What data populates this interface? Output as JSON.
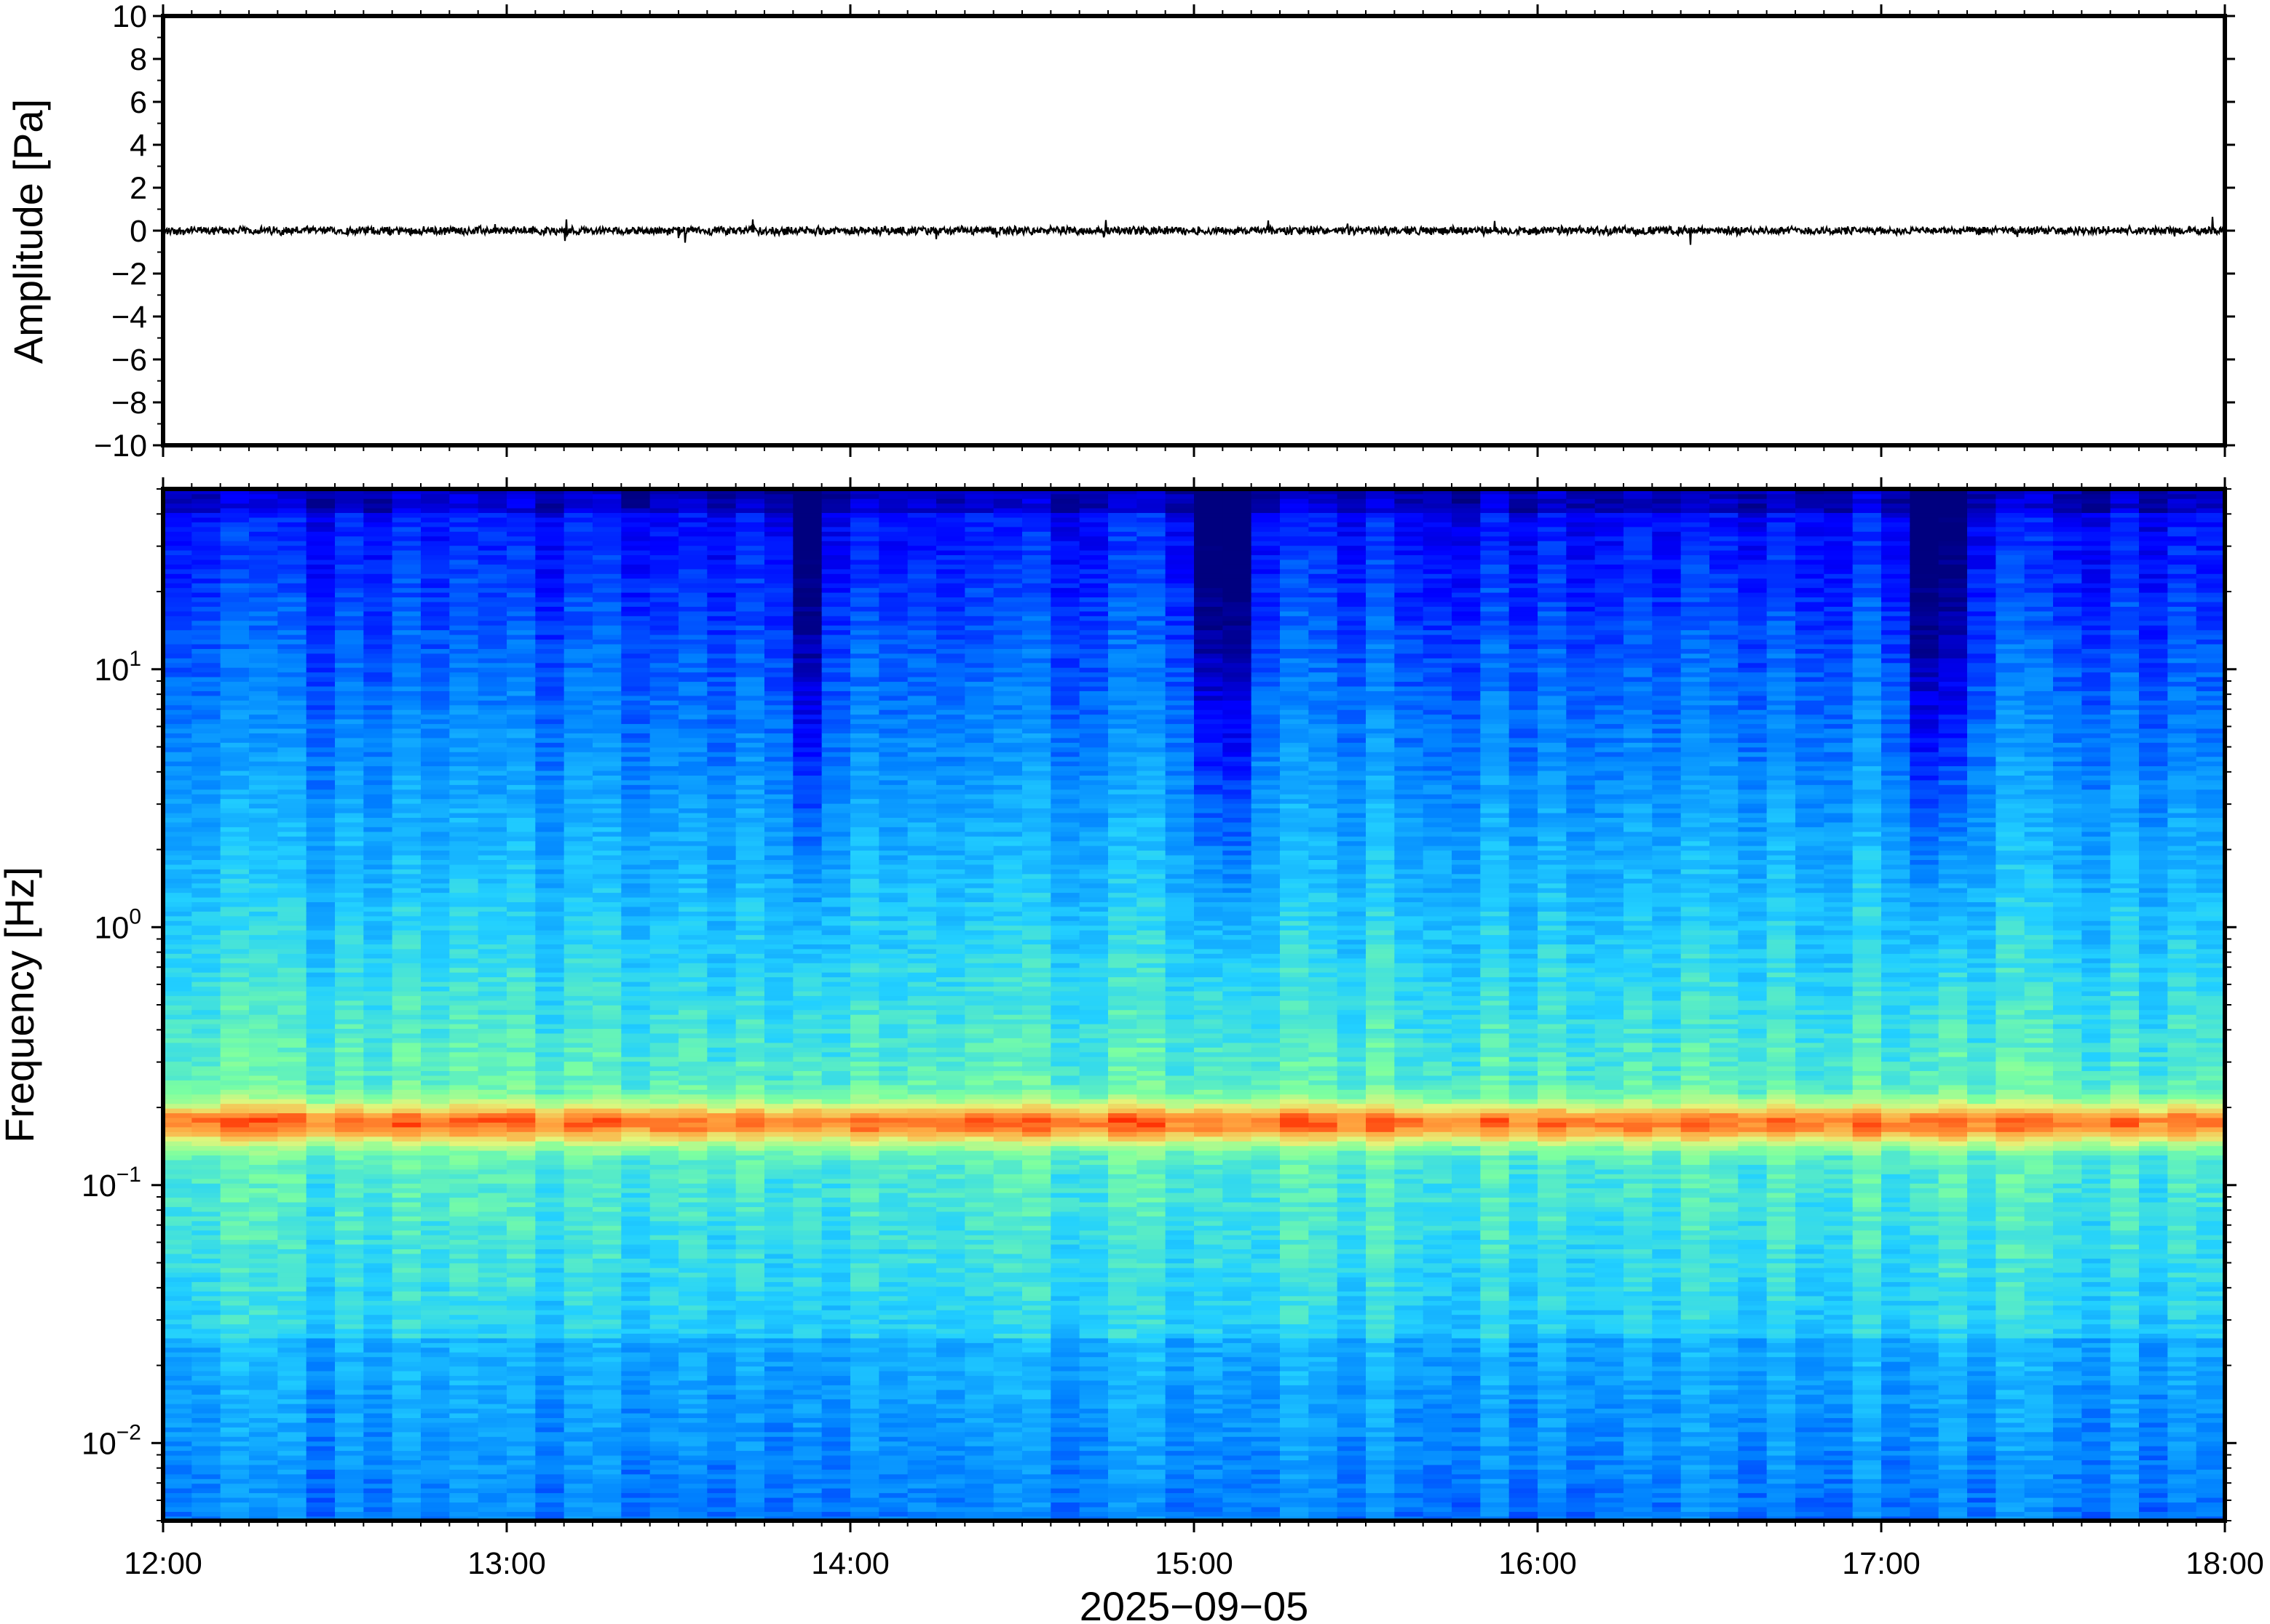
{
  "chart_data": [
    {
      "type": "line",
      "panel": "waveform",
      "ylabel": "Amplitude [Pa]",
      "ylim": [
        -10,
        10
      ],
      "y_ticks": [
        {
          "value": 10,
          "label": "10"
        },
        {
          "value": 8,
          "label": "8"
        },
        {
          "value": 6,
          "label": "6"
        },
        {
          "value": 4,
          "label": "4"
        },
        {
          "value": 2,
          "label": "2"
        },
        {
          "value": 0,
          "label": "0"
        },
        {
          "value": -2,
          "label": "−2"
        },
        {
          "value": -4,
          "label": "−4"
        },
        {
          "value": -6,
          "label": "−6"
        },
        {
          "value": -8,
          "label": "−8"
        },
        {
          "value": -10,
          "label": "−10"
        }
      ],
      "series": [
        {
          "color": "#000000",
          "x_range_hours": [
            12,
            18
          ],
          "baseline": 0,
          "envelope_peak": 0.5,
          "typical_abs_amplitude": 0.2
        }
      ],
      "grid": false
    },
    {
      "type": "heatmap",
      "panel": "spectrogram",
      "ylabel": "Frequency [Hz]",
      "y_scale": "log",
      "ylim": [
        0.005,
        50
      ],
      "y_ticks": [
        {
          "value": 10,
          "base": "10",
          "exp": "1"
        },
        {
          "value": 1,
          "base": "10",
          "exp": "0"
        },
        {
          "value": 0.1,
          "base": "10",
          "exp": "−1"
        },
        {
          "value": 0.01,
          "base": "10",
          "exp": "−2"
        }
      ],
      "colormap": "jet",
      "colormap_stops": [
        "#00007f",
        "#0000ff",
        "#0080ff",
        "#22d0ff",
        "#7cffa0",
        "#e5f57a",
        "#ffa640",
        "#ff2a00",
        "#7f0000"
      ],
      "dominant_band_hz": [
        0.15,
        0.2
      ],
      "quiet_intervals": [
        "13:48-13:56",
        "15:02-15:08",
        "17:03-17:16"
      ],
      "grid": false
    }
  ],
  "x_axis": {
    "ticks": [
      "12:00",
      "13:00",
      "14:00",
      "15:00",
      "16:00",
      "17:00",
      "18:00"
    ],
    "range_hours": [
      12,
      18
    ],
    "date_label": "2025−09−05"
  }
}
